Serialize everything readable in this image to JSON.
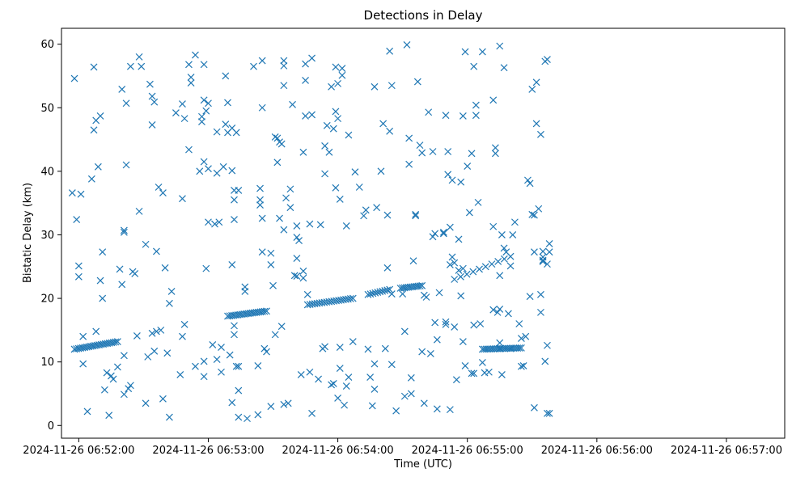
{
  "chart_data": {
    "type": "scatter",
    "title": "Detections in Delay",
    "xlabel": "Time (UTC)",
    "ylabel": "Bistatic Delay (km)",
    "x_axis_kind": "time",
    "date": "2024-11-26",
    "x_ticks": [
      "2024-11-26 06:52:00",
      "2024-11-26 06:53:00",
      "2024-11-26 06:54:00",
      "2024-11-26 06:55:00",
      "2024-11-26 06:56:00",
      "2024-11-26 06:57:00"
    ],
    "xlim": [
      "06:51:52",
      "06:57:27"
    ],
    "y_ticks": [
      0,
      10,
      20,
      30,
      40,
      50,
      60
    ],
    "ylim": [
      -2,
      62.5
    ],
    "grid": false,
    "marker": "x",
    "marker_color": "#1f77b4",
    "tracks": [
      {
        "from": [
          "06:51:58",
          12.0
        ],
        "to": [
          "06:52:18",
          13.2
        ],
        "points": 22
      },
      {
        "from": [
          "06:53:09",
          17.2
        ],
        "to": [
          "06:53:27",
          18.0
        ],
        "points": 20
      },
      {
        "from": [
          "06:53:46",
          19.0
        ],
        "to": [
          "06:54:07",
          20.0
        ],
        "points": 20
      },
      {
        "from": [
          "06:54:14",
          20.6
        ],
        "to": [
          "06:54:24",
          21.4
        ],
        "points": 10
      },
      {
        "from": [
          "06:54:29",
          21.6
        ],
        "to": [
          "06:54:39",
          22.0
        ],
        "points": 12
      },
      {
        "from": [
          "06:54:54",
          23.0
        ],
        "to": [
          "06:55:20",
          26.6
        ],
        "points": 10
      },
      {
        "from": [
          "06:55:07",
          12.0
        ],
        "to": [
          "06:55:25",
          12.2
        ],
        "points": 22
      }
    ],
    "points": [
      [
        "06:51:57",
        36.6
      ],
      [
        "06:51:58",
        54.6
      ],
      [
        "06:51:59",
        32.4
      ],
      [
        "06:52:00",
        25.1
      ],
      [
        "06:52:00",
        23.4
      ],
      [
        "06:52:01",
        36.4
      ],
      [
        "06:52:02",
        9.7
      ],
      [
        "06:52:02",
        14.0
      ],
      [
        "06:52:04",
        2.2
      ],
      [
        "06:52:06",
        38.8
      ],
      [
        "06:52:07",
        56.4
      ],
      [
        "06:52:07",
        46.5
      ],
      [
        "06:52:08",
        14.8
      ],
      [
        "06:52:08",
        48.0
      ],
      [
        "06:52:09",
        40.7
      ],
      [
        "06:52:10",
        22.8
      ],
      [
        "06:52:10",
        48.7
      ],
      [
        "06:52:11",
        20.0
      ],
      [
        "06:52:11",
        27.3
      ],
      [
        "06:52:12",
        5.6
      ],
      [
        "06:52:13",
        8.3
      ],
      [
        "06:52:14",
        1.6
      ],
      [
        "06:52:15",
        7.8
      ],
      [
        "06:52:16",
        7.3
      ],
      [
        "06:52:18",
        9.2
      ],
      [
        "06:52:19",
        24.6
      ],
      [
        "06:52:20",
        22.2
      ],
      [
        "06:52:20",
        52.9
      ],
      [
        "06:52:21",
        4.9
      ],
      [
        "06:52:21",
        11.0
      ],
      [
        "06:52:21",
        30.7
      ],
      [
        "06:52:21",
        30.4
      ],
      [
        "06:52:22",
        41.0
      ],
      [
        "06:52:22",
        50.7
      ],
      [
        "06:52:23",
        5.8
      ],
      [
        "06:52:24",
        6.3
      ],
      [
        "06:52:24",
        56.5
      ],
      [
        "06:52:25",
        24.2
      ],
      [
        "06:52:26",
        23.9
      ],
      [
        "06:52:27",
        14.1
      ],
      [
        "06:52:28",
        58.0
      ],
      [
        "06:52:28",
        33.7
      ],
      [
        "06:52:29",
        56.5
      ],
      [
        "06:52:31",
        28.5
      ],
      [
        "06:52:31",
        3.5
      ],
      [
        "06:52:32",
        10.8
      ],
      [
        "06:52:33",
        53.7
      ],
      [
        "06:52:34",
        14.5
      ],
      [
        "06:52:34",
        47.3
      ],
      [
        "06:52:34",
        51.8
      ],
      [
        "06:52:35",
        50.9
      ],
      [
        "06:52:35",
        11.7
      ],
      [
        "06:52:36",
        14.8
      ],
      [
        "06:52:36",
        27.4
      ],
      [
        "06:52:37",
        37.5
      ],
      [
        "06:52:38",
        15.0
      ],
      [
        "06:52:39",
        36.6
      ],
      [
        "06:52:39",
        4.2
      ],
      [
        "06:52:40",
        24.8
      ],
      [
        "06:52:41",
        11.4
      ],
      [
        "06:52:42",
        1.3
      ],
      [
        "06:52:42",
        19.2
      ],
      [
        "06:52:43",
        21.1
      ],
      [
        "06:52:45",
        49.2
      ],
      [
        "06:52:47",
        8.0
      ],
      [
        "06:52:48",
        35.7
      ],
      [
        "06:52:48",
        14.0
      ],
      [
        "06:52:48",
        50.6
      ],
      [
        "06:52:49",
        15.9
      ],
      [
        "06:52:49",
        48.3
      ],
      [
        "06:52:51",
        56.8
      ],
      [
        "06:52:51",
        43.4
      ],
      [
        "06:52:52",
        54.8
      ],
      [
        "06:52:52",
        53.9
      ],
      [
        "06:52:54",
        58.3
      ],
      [
        "06:52:54",
        9.3
      ],
      [
        "06:52:56",
        40.0
      ],
      [
        "06:52:57",
        48.6
      ],
      [
        "06:52:57",
        47.8
      ],
      [
        "06:52:58",
        7.7
      ],
      [
        "06:52:58",
        10.1
      ],
      [
        "06:52:58",
        41.5
      ],
      [
        "06:52:58",
        56.8
      ],
      [
        "06:52:58",
        51.2
      ],
      [
        "06:52:59",
        49.5
      ],
      [
        "06:52:59",
        24.7
      ],
      [
        "06:53:00",
        50.7
      ],
      [
        "06:53:00",
        40.4
      ],
      [
        "06:53:00",
        32.0
      ],
      [
        "06:53:02",
        12.7
      ],
      [
        "06:53:03",
        31.7
      ],
      [
        "06:53:04",
        10.4
      ],
      [
        "06:53:04",
        39.7
      ],
      [
        "06:53:04",
        46.2
      ],
      [
        "06:53:05",
        32.0
      ],
      [
        "06:53:06",
        8.4
      ],
      [
        "06:53:06",
        12.3
      ],
      [
        "06:53:07",
        40.7
      ],
      [
        "06:53:08",
        47.4
      ],
      [
        "06:53:08",
        55.0
      ],
      [
        "06:53:09",
        46.1
      ],
      [
        "06:53:09",
        50.8
      ],
      [
        "06:53:10",
        11.1
      ],
      [
        "06:53:11",
        25.3
      ],
      [
        "06:53:11",
        3.6
      ],
      [
        "06:53:11",
        40.1
      ],
      [
        "06:53:11",
        46.8
      ],
      [
        "06:53:12",
        37.0
      ],
      [
        "06:53:12",
        35.5
      ],
      [
        "06:53:12",
        32.4
      ],
      [
        "06:53:12",
        15.7
      ],
      [
        "06:53:12",
        14.3
      ],
      [
        "06:53:13",
        9.3
      ],
      [
        "06:53:13",
        46.1
      ],
      [
        "06:53:14",
        37.0
      ],
      [
        "06:53:14",
        5.5
      ],
      [
        "06:53:14",
        1.3
      ],
      [
        "06:53:14",
        9.3
      ],
      [
        "06:53:17",
        21.8
      ],
      [
        "06:53:17",
        21.1
      ],
      [
        "06:53:18",
        1.1
      ],
      [
        "06:53:21",
        56.5
      ],
      [
        "06:53:23",
        9.4
      ],
      [
        "06:53:23",
        1.7
      ],
      [
        "06:53:24",
        37.3
      ],
      [
        "06:53:24",
        35.5
      ],
      [
        "06:53:24",
        34.7
      ],
      [
        "06:53:25",
        32.6
      ],
      [
        "06:53:25",
        57.4
      ],
      [
        "06:53:25",
        27.3
      ],
      [
        "06:53:25",
        50.0
      ],
      [
        "06:53:26",
        12.1
      ],
      [
        "06:53:27",
        11.6
      ],
      [
        "06:53:29",
        27.1
      ],
      [
        "06:53:29",
        3.0
      ],
      [
        "06:53:29",
        25.3
      ],
      [
        "06:53:30",
        22.0
      ],
      [
        "06:53:31",
        14.3
      ],
      [
        "06:53:31",
        45.4
      ],
      [
        "06:53:32",
        45.2
      ],
      [
        "06:53:32",
        41.4
      ],
      [
        "06:53:33",
        44.6
      ],
      [
        "06:53:33",
        32.6
      ],
      [
        "06:53:34",
        44.3
      ],
      [
        "06:53:34",
        15.6
      ],
      [
        "06:53:35",
        57.4
      ],
      [
        "06:53:35",
        56.6
      ],
      [
        "06:53:35",
        53.5
      ],
      [
        "06:53:35",
        30.8
      ],
      [
        "06:53:35",
        3.3
      ],
      [
        "06:53:36",
        35.8
      ],
      [
        "06:53:37",
        3.5
      ],
      [
        "06:53:38",
        37.2
      ],
      [
        "06:53:38",
        34.3
      ],
      [
        "06:53:39",
        50.5
      ],
      [
        "06:53:40",
        23.6
      ],
      [
        "06:53:41",
        31.4
      ],
      [
        "06:53:41",
        26.3
      ],
      [
        "06:53:41",
        23.5
      ],
      [
        "06:53:41",
        29.6
      ],
      [
        "06:53:42",
        29.1
      ],
      [
        "06:53:43",
        8.0
      ],
      [
        "06:53:44",
        24.3
      ],
      [
        "06:53:44",
        43.0
      ],
      [
        "06:53:44",
        23.2
      ],
      [
        "06:53:45",
        54.3
      ],
      [
        "06:53:45",
        56.9
      ],
      [
        "06:53:45",
        48.7
      ],
      [
        "06:53:46",
        20.6
      ],
      [
        "06:53:47",
        8.4
      ],
      [
        "06:53:47",
        31.7
      ],
      [
        "06:53:48",
        57.8
      ],
      [
        "06:53:48",
        48.9
      ],
      [
        "06:53:48",
        1.9
      ],
      [
        "06:53:51",
        7.3
      ],
      [
        "06:53:52",
        31.6
      ],
      [
        "06:53:53",
        12.1
      ],
      [
        "06:53:54",
        12.4
      ],
      [
        "06:53:54",
        39.6
      ],
      [
        "06:53:54",
        44.0
      ],
      [
        "06:53:55",
        47.2
      ],
      [
        "06:53:56",
        43.0
      ],
      [
        "06:53:57",
        53.3
      ],
      [
        "06:53:57",
        6.4
      ],
      [
        "06:53:58",
        6.6
      ],
      [
        "06:53:58",
        46.7
      ],
      [
        "06:53:59",
        49.4
      ],
      [
        "06:53:59",
        56.4
      ],
      [
        "06:53:59",
        37.4
      ],
      [
        "06:54:00",
        53.8
      ],
      [
        "06:54:00",
        48.3
      ],
      [
        "06:54:00",
        4.3
      ],
      [
        "06:54:01",
        9.0
      ],
      [
        "06:54:01",
        12.3
      ],
      [
        "06:54:01",
        35.6
      ],
      [
        "06:54:02",
        56.2
      ],
      [
        "06:54:02",
        55.1
      ],
      [
        "06:54:03",
        3.2
      ],
      [
        "06:54:04",
        6.2
      ],
      [
        "06:54:04",
        31.4
      ],
      [
        "06:54:05",
        7.6
      ],
      [
        "06:54:05",
        45.7
      ],
      [
        "06:54:07",
        13.2
      ],
      [
        "06:54:08",
        39.9
      ],
      [
        "06:54:10",
        37.5
      ],
      [
        "06:54:12",
        33.0
      ],
      [
        "06:54:13",
        33.9
      ],
      [
        "06:54:14",
        12.0
      ],
      [
        "06:54:15",
        7.6
      ],
      [
        "06:54:16",
        3.1
      ],
      [
        "06:54:17",
        53.3
      ],
      [
        "06:54:17",
        5.7
      ],
      [
        "06:54:17",
        9.7
      ],
      [
        "06:54:18",
        34.3
      ],
      [
        "06:54:20",
        40.0
      ],
      [
        "06:54:21",
        47.5
      ],
      [
        "06:54:22",
        12.1
      ],
      [
        "06:54:23",
        33.1
      ],
      [
        "06:54:23",
        24.8
      ],
      [
        "06:54:24",
        46.3
      ],
      [
        "06:54:24",
        58.9
      ],
      [
        "06:54:25",
        53.5
      ],
      [
        "06:54:25",
        20.7
      ],
      [
        "06:54:25",
        9.6
      ],
      [
        "06:54:27",
        2.3
      ],
      [
        "06:54:30",
        20.7
      ],
      [
        "06:54:31",
        4.6
      ],
      [
        "06:54:31",
        14.8
      ],
      [
        "06:54:32",
        59.9
      ],
      [
        "06:54:33",
        45.2
      ],
      [
        "06:54:33",
        41.1
      ],
      [
        "06:54:34",
        7.5
      ],
      [
        "06:54:34",
        5.0
      ],
      [
        "06:54:35",
        25.9
      ],
      [
        "06:54:36",
        33.2
      ],
      [
        "06:54:36",
        33.0
      ],
      [
        "06:54:37",
        54.1
      ],
      [
        "06:54:38",
        44.1
      ],
      [
        "06:54:39",
        11.6
      ],
      [
        "06:54:39",
        42.9
      ],
      [
        "06:54:40",
        20.5
      ],
      [
        "06:54:40",
        3.5
      ],
      [
        "06:54:41",
        20.2
      ],
      [
        "06:54:42",
        49.3
      ],
      [
        "06:54:43",
        11.3
      ],
      [
        "06:54:44",
        43.1
      ],
      [
        "06:54:44",
        29.7
      ],
      [
        "06:54:45",
        16.2
      ],
      [
        "06:54:45",
        30.2
      ],
      [
        "06:54:46",
        2.6
      ],
      [
        "06:54:46",
        13.5
      ],
      [
        "06:54:47",
        20.9
      ],
      [
        "06:54:49",
        30.4
      ],
      [
        "06:54:49",
        30.2
      ],
      [
        "06:54:50",
        16.3
      ],
      [
        "06:54:50",
        15.9
      ],
      [
        "06:54:50",
        48.8
      ],
      [
        "06:54:51",
        39.5
      ],
      [
        "06:54:51",
        43.1
      ],
      [
        "06:54:52",
        31.2
      ],
      [
        "06:54:52",
        2.5
      ],
      [
        "06:54:52",
        25.3
      ],
      [
        "06:54:53",
        38.6
      ],
      [
        "06:54:53",
        26.5
      ],
      [
        "06:54:54",
        15.5
      ],
      [
        "06:54:54",
        25.6
      ],
      [
        "06:54:55",
        7.2
      ],
      [
        "06:54:56",
        24.4
      ],
      [
        "06:54:56",
        29.3
      ],
      [
        "06:54:57",
        38.3
      ],
      [
        "06:54:57",
        20.4
      ],
      [
        "06:54:58",
        13.2
      ],
      [
        "06:54:58",
        48.7
      ],
      [
        "06:54:58",
        24.7
      ],
      [
        "06:54:59",
        58.8
      ],
      [
        "06:54:59",
        9.4
      ],
      [
        "06:55:00",
        40.8
      ],
      [
        "06:55:01",
        33.5
      ],
      [
        "06:55:02",
        8.2
      ],
      [
        "06:55:02",
        42.8
      ],
      [
        "06:55:03",
        8.2
      ],
      [
        "06:55:03",
        56.5
      ],
      [
        "06:55:03",
        15.8
      ],
      [
        "06:55:04",
        48.8
      ],
      [
        "06:55:04",
        50.4
      ],
      [
        "06:55:05",
        35.1
      ],
      [
        "06:55:06",
        16.0
      ],
      [
        "06:55:07",
        58.8
      ],
      [
        "06:55:07",
        9.9
      ],
      [
        "06:55:08",
        8.3
      ],
      [
        "06:55:10",
        8.4
      ],
      [
        "06:55:12",
        18.2
      ],
      [
        "06:55:12",
        31.3
      ],
      [
        "06:55:12",
        51.2
      ],
      [
        "06:55:13",
        43.7
      ],
      [
        "06:55:13",
        42.8
      ],
      [
        "06:55:14",
        17.8
      ],
      [
        "06:55:15",
        59.7
      ],
      [
        "06:55:15",
        12.1
      ],
      [
        "06:55:15",
        13.0
      ],
      [
        "06:55:15",
        18.3
      ],
      [
        "06:55:15",
        23.6
      ],
      [
        "06:55:16",
        8.0
      ],
      [
        "06:55:16",
        30.0
      ],
      [
        "06:55:17",
        27.9
      ],
      [
        "06:55:17",
        56.3
      ],
      [
        "06:55:18",
        27.3
      ],
      [
        "06:55:19",
        17.6
      ],
      [
        "06:55:20",
        12.1
      ],
      [
        "06:55:20",
        25.1
      ],
      [
        "06:55:21",
        30.0
      ],
      [
        "06:55:22",
        32.0
      ],
      [
        "06:55:24",
        16.0
      ],
      [
        "06:55:25",
        13.7
      ],
      [
        "06:55:25",
        9.3
      ],
      [
        "06:55:26",
        9.4
      ],
      [
        "06:55:27",
        14.0
      ],
      [
        "06:55:28",
        38.6
      ],
      [
        "06:55:29",
        38.1
      ],
      [
        "06:55:29",
        20.3
      ],
      [
        "06:55:30",
        52.9
      ],
      [
        "06:55:30",
        33.2
      ],
      [
        "06:55:31",
        2.8
      ],
      [
        "06:55:31",
        33.1
      ],
      [
        "06:55:31",
        27.3
      ],
      [
        "06:55:32",
        54.0
      ],
      [
        "06:55:32",
        47.5
      ],
      [
        "06:55:33",
        34.1
      ],
      [
        "06:55:34",
        17.8
      ],
      [
        "06:55:34",
        20.6
      ],
      [
        "06:55:34",
        45.8
      ],
      [
        "06:55:35",
        26.5
      ],
      [
        "06:55:35",
        25.8
      ],
      [
        "06:55:35",
        27.4
      ],
      [
        "06:55:35",
        26.0
      ],
      [
        "06:55:36",
        10.1
      ],
      [
        "06:55:36",
        57.3
      ],
      [
        "06:55:37",
        12.6
      ],
      [
        "06:55:37",
        25.4
      ],
      [
        "06:55:37",
        57.6
      ],
      [
        "06:55:37",
        1.9
      ],
      [
        "06:55:38",
        1.9
      ],
      [
        "06:55:38",
        27.3
      ],
      [
        "06:55:38",
        28.6
      ]
    ]
  }
}
